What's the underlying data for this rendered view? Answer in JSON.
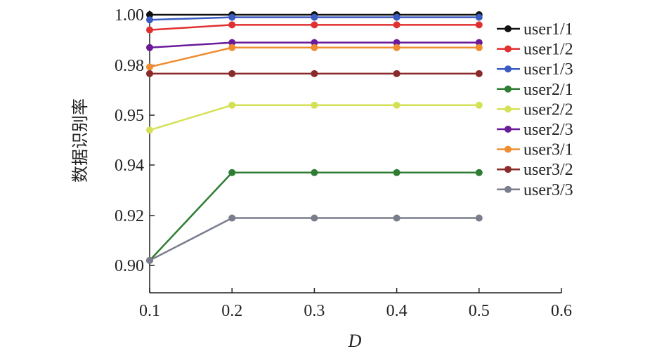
{
  "chart_data": {
    "type": "line",
    "xlabel": "D",
    "ylabel": "数据识别率",
    "xlim": [
      0.1,
      0.6
    ],
    "ylim": [
      0.89,
      1.0
    ],
    "x_ticks": [
      "0.1",
      "0.2",
      "0.3",
      "0.4",
      "0.5",
      "0.6"
    ],
    "y_ticks": [
      "0.90",
      "0.92",
      "0.94",
      "0.95",
      "0.98",
      "1.00"
    ],
    "grid": false,
    "legend_position": "right",
    "x": [
      0.1,
      0.2,
      0.3,
      0.4,
      0.5
    ],
    "series": [
      {
        "name": "user1/1",
        "color": "#111111",
        "values": [
          1.0,
          1.0,
          1.0,
          1.0,
          1.0
        ]
      },
      {
        "name": "user1/2",
        "color": "#e03030",
        "values": [
          0.994,
          0.996,
          0.996,
          0.996,
          0.996
        ]
      },
      {
        "name": "user1/3",
        "color": "#3a5bc0",
        "values": [
          0.998,
          0.999,
          0.999,
          0.999,
          0.999
        ]
      },
      {
        "name": "user2/1",
        "color": "#2e7d32",
        "values": [
          0.902,
          0.937,
          0.937,
          0.937,
          0.937
        ]
      },
      {
        "name": "user2/2",
        "color": "#d4e157",
        "values": [
          0.947,
          0.956,
          0.956,
          0.956,
          0.956
        ]
      },
      {
        "name": "user2/3",
        "color": "#6a1b9a",
        "values": [
          0.987,
          0.989,
          0.989,
          0.989,
          0.989
        ]
      },
      {
        "name": "user3/1",
        "color": "#ef8c2e",
        "values": [
          0.979,
          0.987,
          0.987,
          0.987,
          0.987
        ]
      },
      {
        "name": "user3/2",
        "color": "#8b2a2a",
        "values": [
          0.975,
          0.975,
          0.975,
          0.975,
          0.975
        ]
      },
      {
        "name": "user3/3",
        "color": "#7a7d8c",
        "values": [
          0.902,
          0.919,
          0.919,
          0.919,
          0.919
        ]
      }
    ]
  }
}
